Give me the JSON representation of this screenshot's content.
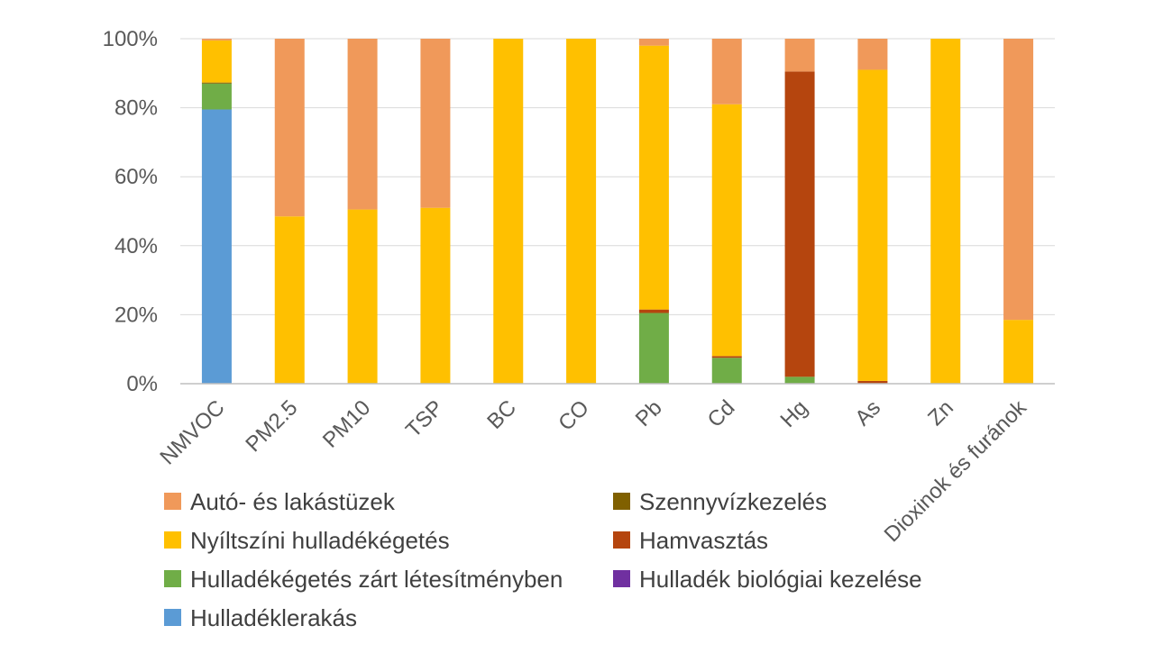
{
  "chart_data": {
    "type": "bar",
    "stacked": true,
    "normalized": true,
    "title": "",
    "xlabel": "",
    "ylabel": "",
    "ylim": [
      0,
      100
    ],
    "yticks": [
      "0%",
      "20%",
      "40%",
      "60%",
      "80%",
      "100%"
    ],
    "grid": true,
    "legend_position": "bottom",
    "categories": [
      "NMVOC",
      "PM2.5",
      "PM10",
      "TSP",
      "BC",
      "CO",
      "Pb",
      "Cd",
      "Hg",
      "As",
      "Zn",
      "Dioxinok és furánok"
    ],
    "series": [
      {
        "name": "Hulladéklerakás",
        "color": "#5B9BD5",
        "values": [
          79.5,
          0,
          0,
          0,
          0,
          0,
          0,
          0,
          0,
          0,
          0,
          0
        ]
      },
      {
        "name": "Hulladékégetés zárt létesítményben",
        "color": "#70AD47",
        "values": [
          7.5,
          0,
          0,
          0,
          0,
          0,
          20.5,
          7.5,
          2,
          0,
          0,
          0
        ]
      },
      {
        "name": "Hulladék biológiai kezelése",
        "color": "#7030A0",
        "values": [
          0,
          0,
          0,
          0,
          0,
          0,
          0,
          0,
          0,
          0,
          0,
          0
        ]
      },
      {
        "name": "Hamvasztás",
        "color": "#B5450E",
        "values": [
          0,
          0,
          0,
          0,
          0,
          0,
          1,
          0.5,
          88.5,
          0.8,
          0,
          0
        ]
      },
      {
        "name": "Szennyvízkezelés",
        "color": "#806000",
        "values": [
          0.3,
          0,
          0,
          0,
          0,
          0,
          0,
          0,
          0,
          0,
          0,
          0
        ]
      },
      {
        "name": "Nyíltszíni hulladékégetés",
        "color": "#FFC000",
        "values": [
          12.2,
          48.5,
          50.5,
          51,
          100,
          100,
          76.5,
          73,
          0,
          90.2,
          100,
          18.5
        ]
      },
      {
        "name": "Autó- és lakástüzek",
        "color": "#F0995A",
        "values": [
          0.5,
          51.5,
          49.5,
          49,
          0,
          0,
          2,
          19,
          9.5,
          9,
          0,
          81.5
        ]
      }
    ],
    "stack_order": [
      "Hulladéklerakás",
      "Hulladékégetés zárt létesítményben",
      "Hulladék biológiai kezelése",
      "Hamvasztás",
      "Szennyvízkezelés",
      "Nyíltszíni hulladékégetés",
      "Autó- és lakástüzek"
    ],
    "legend": {
      "entries": [
        "Autó- és lakástüzek",
        "Szennyvízkezelés",
        "Nyíltszíni hulladékégetés",
        "Hamvasztás",
        "Hulladékégetés zárt létesítményben",
        "Hulladék biológiai kezelése",
        "Hulladéklerakás"
      ],
      "columns": 2
    },
    "colors": {
      "grid": "#D9D9D9",
      "axis": "#BFBFBF",
      "tick_text": "#595959"
    }
  }
}
